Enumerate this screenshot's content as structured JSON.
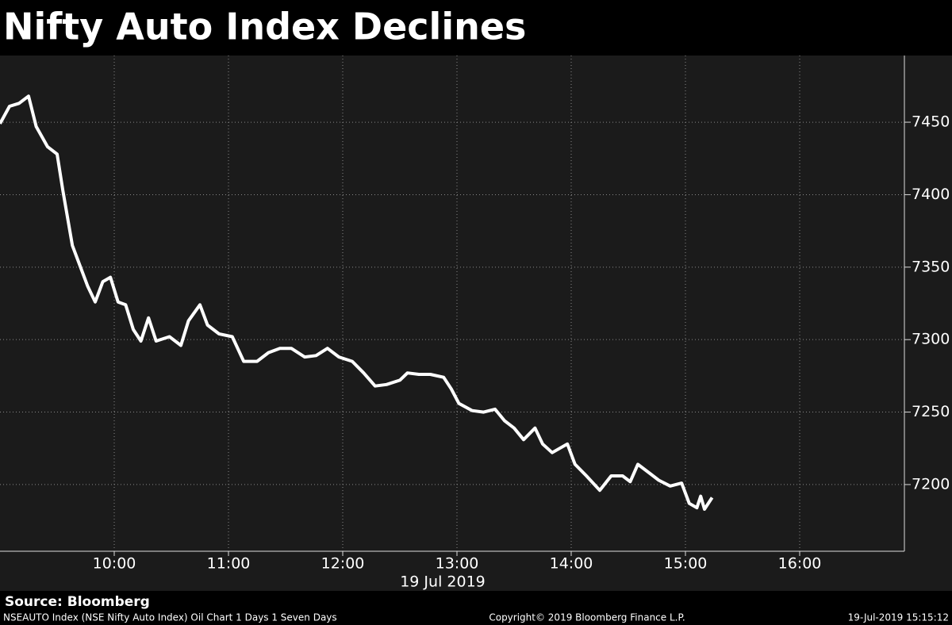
{
  "chart_data": {
    "type": "line",
    "title": "Nifty Auto Index Declines",
    "xlabel": "19 Jul 2019",
    "x": [
      "09:00",
      "09:05",
      "09:10",
      "09:15",
      "09:19",
      "09:25",
      "09:30",
      "09:33",
      "09:38",
      "09:42",
      "09:46",
      "09:50",
      "09:54",
      "09:58",
      "10:02",
      "10:06",
      "10:10",
      "10:14",
      "10:18",
      "10:22",
      "10:29",
      "10:35",
      "10:39",
      "10:45",
      "10:49",
      "10:55",
      "11:02",
      "11:08",
      "11:15",
      "11:21",
      "11:27",
      "11:33",
      "11:40",
      "11:46",
      "11:52",
      "11:58",
      "12:05",
      "12:11",
      "12:17",
      "12:23",
      "12:30",
      "12:34",
      "12:40",
      "12:46",
      "12:53",
      "12:57",
      "13:01",
      "13:08",
      "13:14",
      "13:20",
      "13:25",
      "13:30",
      "13:35",
      "13:41",
      "13:45",
      "13:50",
      "13:54",
      "13:58",
      "14:02",
      "14:08",
      "14:15",
      "14:21",
      "14:27",
      "14:31",
      "14:35",
      "14:42",
      "14:46",
      "14:52",
      "14:58",
      "15:02",
      "15:06",
      "15:08",
      "15:10",
      "15:14"
    ],
    "values": [
      7449,
      7461,
      7463,
      7468,
      7447,
      7433,
      7428,
      7403,
      7365,
      7351,
      7337,
      7326,
      7340,
      7343,
      7326,
      7324,
      7307,
      7299,
      7315,
      7299,
      7302,
      7296,
      7313,
      7324,
      7310,
      7304,
      7302,
      7285,
      7285,
      7291,
      7294,
      7294,
      7288,
      7289,
      7294,
      7288,
      7285,
      7277,
      7268,
      7269,
      7272,
      7277,
      7276,
      7276,
      7274,
      7266,
      7256,
      7251,
      7250,
      7252,
      7244,
      7239,
      7231,
      7239,
      7228,
      7222,
      7225,
      7228,
      7214,
      7206,
      7196,
      7206,
      7206,
      7202,
      7214,
      7207,
      7203,
      7199,
      7201,
      7187,
      7184,
      7192,
      7183,
      7191
    ],
    "color": "#ffffff",
    "xlim": [
      "09:00",
      "16:55"
    ],
    "xticks": [
      "10:00",
      "11:00",
      "12:00",
      "13:00",
      "14:00",
      "15:00",
      "16:00"
    ],
    "ylim": [
      7154,
      7496
    ],
    "yticks": [
      7200,
      7250,
      7300,
      7350,
      7400,
      7450
    ],
    "grid": true
  },
  "footer": {
    "source": "Source: Bloomberg",
    "description": "NSEAUTO Index (NSE Nifty Auto Index) Oil Chart 1 Days 1 Seven Days",
    "copyright": "Copyright© 2019 Bloomberg Finance L.P.",
    "timestamp": "19-Jul-2019 15:15:12"
  }
}
